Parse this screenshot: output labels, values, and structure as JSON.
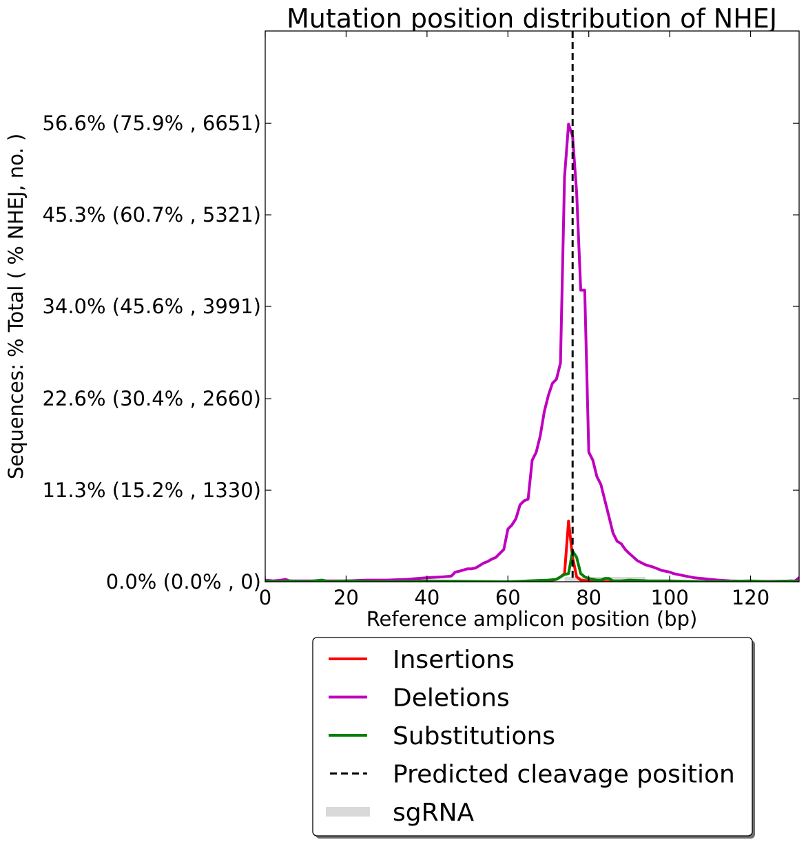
{
  "chart_data": {
    "type": "line",
    "title": "Mutation position distribution of NHEJ",
    "xlabel": "Reference amplicon position (bp)",
    "ylabel": "Sequences: % Total ( % NHEJ, no. )",
    "xlim": [
      0,
      132
    ],
    "ylim": [
      0,
      68
    ],
    "xticks": [
      0,
      20,
      40,
      60,
      80,
      100,
      120
    ],
    "xtick_labels": [
      "0",
      "20",
      "40",
      "60",
      "80",
      "100",
      "120"
    ],
    "yticks": [
      0,
      11.3,
      22.6,
      34.0,
      45.3,
      56.6
    ],
    "ytick_labels": [
      "0.0% (0.0% , 0)",
      "11.3% (15.2% , 1330)",
      "22.6% (30.4% , 2660)",
      "34.0% (45.6% , 3991)",
      "45.3% (60.7% , 5321)",
      "56.6% (75.9% , 6651)"
    ],
    "grid": false,
    "legend_position": "below-plot",
    "cleavage_position": 76,
    "sgrna_range": [
      74,
      94
    ],
    "series": [
      {
        "name": "Insertions",
        "color": "#ff0000",
        "x": [
          0,
          60,
          70,
          72,
          73,
          74,
          75,
          76,
          77,
          78,
          80,
          84,
          86,
          132
        ],
        "y": [
          0,
          0,
          0.1,
          0.3,
          0.6,
          1.0,
          7.5,
          3.0,
          0.6,
          0.2,
          0.1,
          0,
          0,
          0
        ]
      },
      {
        "name": "Deletions",
        "color": "#bf00bf",
        "x": [
          0,
          2,
          4,
          5,
          6,
          10,
          15,
          20,
          25,
          30,
          35,
          40,
          44,
          46,
          47,
          48,
          50,
          51,
          52,
          53,
          54,
          55,
          56,
          57,
          58,
          59,
          60,
          61,
          62,
          63,
          64,
          65,
          66,
          67,
          68,
          69,
          70,
          71,
          72,
          73,
          74,
          75,
          76,
          77,
          78,
          79,
          80,
          81,
          82,
          83,
          84,
          85,
          86,
          87,
          88,
          89,
          90,
          92,
          94,
          96,
          98,
          100,
          101,
          102,
          103,
          104,
          106,
          108,
          110,
          112,
          115,
          120,
          125,
          131,
          132
        ],
        "y": [
          0.2,
          0.1,
          0.2,
          0.3,
          0.1,
          0.1,
          0.1,
          0.1,
          0.2,
          0.2,
          0.3,
          0.5,
          0.6,
          0.7,
          1.2,
          1.3,
          1.6,
          1.6,
          1.7,
          2.0,
          2.3,
          2.5,
          2.8,
          3.0,
          3.5,
          4.0,
          6.5,
          7.0,
          7.8,
          9.5,
          10.0,
          10.2,
          15.0,
          16.0,
          18.0,
          21.0,
          23.0,
          24.5,
          25.0,
          27.0,
          50.0,
          56.5,
          55.0,
          48.0,
          36.0,
          36.0,
          16.0,
          15.0,
          13.0,
          12.0,
          10.0,
          8.0,
          6.0,
          5.0,
          4.7,
          4.0,
          3.5,
          2.6,
          2.1,
          1.8,
          1.4,
          1.2,
          1.0,
          0.9,
          0.8,
          0.7,
          0.5,
          0.4,
          0.3,
          0.2,
          0.1,
          0.05,
          0.05,
          0.1,
          0.5
        ]
      },
      {
        "name": "Substitutions",
        "color": "#008000",
        "x": [
          0,
          3,
          6,
          10,
          14,
          16,
          20,
          30,
          40,
          60,
          65,
          70,
          72,
          73,
          74,
          75,
          76,
          77,
          78,
          79,
          80,
          81,
          82,
          83,
          84,
          85,
          86,
          88,
          90,
          95,
          100,
          110,
          120,
          125,
          130,
          132
        ],
        "y": [
          0.1,
          0.0,
          0.1,
          0.0,
          0.2,
          0.0,
          0.1,
          0.0,
          0.1,
          0.0,
          0.1,
          0.2,
          0.3,
          0.6,
          0.9,
          1.0,
          3.8,
          3.0,
          1.0,
          0.6,
          0.4,
          0.3,
          0.2,
          0.2,
          0.4,
          0.4,
          0.1,
          0.1,
          0.2,
          0.1,
          0.1,
          0.0,
          0.1,
          0.0,
          0.1,
          0.0
        ]
      }
    ],
    "legend_entries": [
      {
        "label": "Insertions",
        "color": "#ff0000",
        "style": "solid"
      },
      {
        "label": "Deletions",
        "color": "#bf00bf",
        "style": "solid"
      },
      {
        "label": "Substitutions",
        "color": "#008000",
        "style": "solid"
      },
      {
        "label": "Predicted cleavage position",
        "color": "#000000",
        "style": "dashed"
      },
      {
        "label": "sgRNA",
        "color": "#d9d9d9",
        "style": "band"
      }
    ]
  }
}
